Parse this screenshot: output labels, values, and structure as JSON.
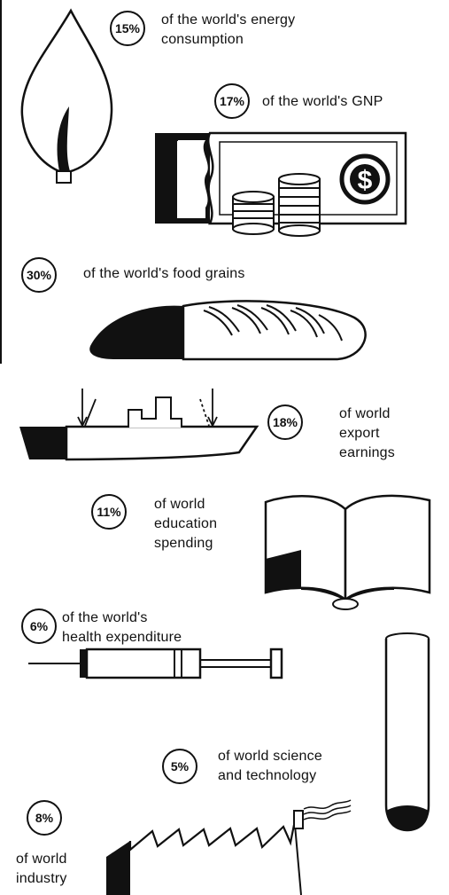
{
  "items": [
    {
      "id": "energy",
      "badge": "15%",
      "lines": [
        "of the world's energy",
        "consumption"
      ],
      "icon": "flame-icon",
      "share": 0.15
    },
    {
      "id": "gnp",
      "badge": "17%",
      "lines": [
        "of the world's GNP"
      ],
      "icon": "banknote-and-coins-icon",
      "share": 0.17
    },
    {
      "id": "food",
      "badge": "30%",
      "lines": [
        "of the world's food grains"
      ],
      "icon": "bread-loaf-icon",
      "share": 0.3
    },
    {
      "id": "export",
      "badge": "18%",
      "lines": [
        "of world",
        "export",
        "earnings"
      ],
      "icon": "cargo-ship-icon",
      "share": 0.18
    },
    {
      "id": "education",
      "badge": "11%",
      "lines": [
        "of world",
        "education",
        "spending"
      ],
      "icon": "open-book-icon",
      "share": 0.11
    },
    {
      "id": "health",
      "badge": "6%",
      "lines": [
        "of the world's",
        "health expenditure"
      ],
      "icon": "syringe-icon",
      "share": 0.06
    },
    {
      "id": "science",
      "badge": "5%",
      "lines": [
        "of world science",
        "and technology"
      ],
      "icon": "test-tube-icon",
      "share": 0.05
    },
    {
      "id": "industry",
      "badge": "8%",
      "lines": [
        "of world",
        "industry"
      ],
      "icon": "factory-icon",
      "share": 0.08
    }
  ],
  "colors": {
    "ink": "#111111",
    "paper": "#ffffff"
  }
}
